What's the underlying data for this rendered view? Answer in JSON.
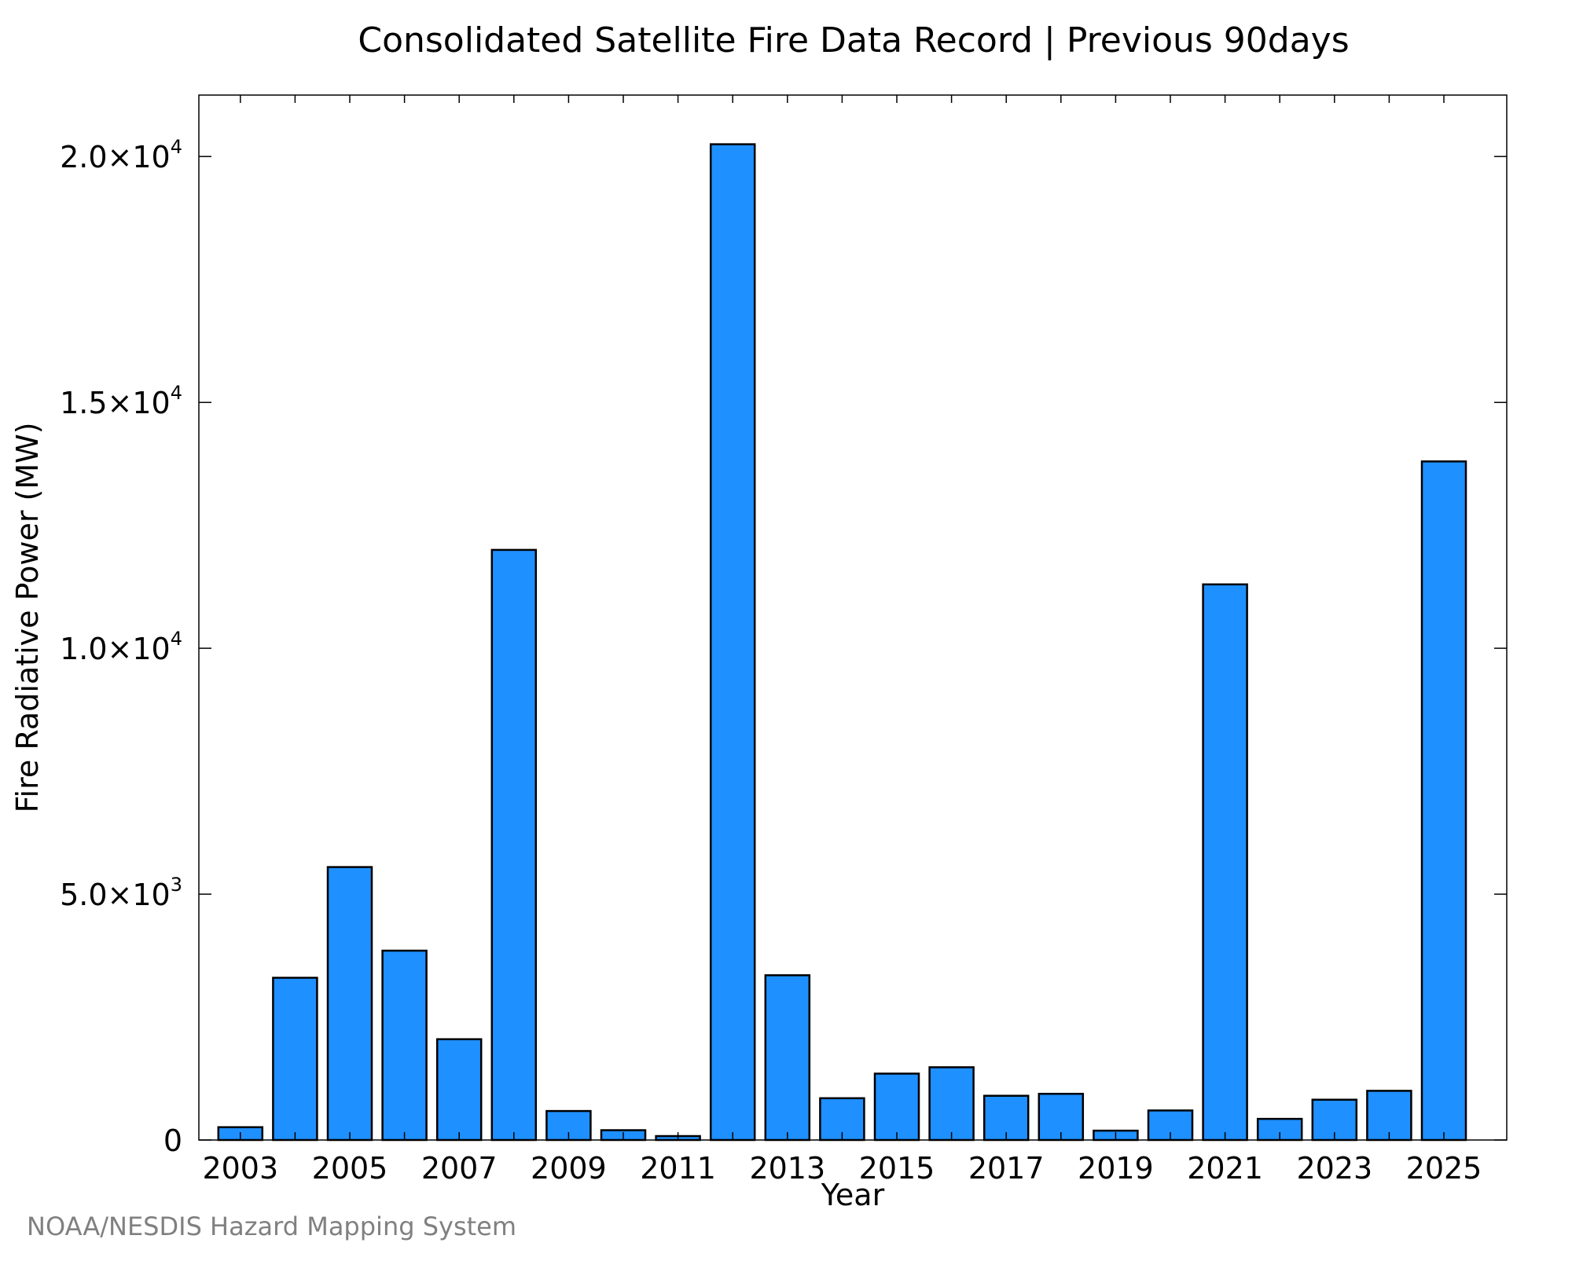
{
  "chart_data": {
    "type": "bar",
    "title": "Consolidated Satellite Fire Data Record | Previous 90days",
    "xlabel": "Year",
    "ylabel": "Fire Radiative Power (MW)",
    "categories": [
      "2003",
      "2004",
      "2005",
      "2006",
      "2007",
      "2008",
      "2009",
      "2010",
      "2011",
      "2012",
      "2013",
      "2014",
      "2015",
      "2016",
      "2017",
      "2018",
      "2019",
      "2020",
      "2021",
      "2022",
      "2023",
      "2024",
      "2025"
    ],
    "values": [
      260,
      3300,
      5550,
      3850,
      2050,
      12000,
      590,
      200,
      80,
      20250,
      3350,
      850,
      1350,
      1480,
      900,
      940,
      190,
      600,
      11300,
      430,
      820,
      1000,
      13800
    ],
    "ylim": [
      0,
      21250
    ],
    "y_ticks": [
      {
        "value": 0,
        "mantissa": "0",
        "exponent": ""
      },
      {
        "value": 5000,
        "mantissa": "5.0×10",
        "exponent": "3"
      },
      {
        "value": 10000,
        "mantissa": "1.0×10",
        "exponent": "4"
      },
      {
        "value": 15000,
        "mantissa": "1.5×10",
        "exponent": "4"
      },
      {
        "value": 20000,
        "mantissa": "2.0×10",
        "exponent": "4"
      }
    ],
    "x_tick_labels": [
      "2003",
      "2005",
      "2007",
      "2009",
      "2011",
      "2013",
      "2015",
      "2017",
      "2019",
      "2021",
      "2023",
      "2025"
    ],
    "grid": false,
    "legend": "none",
    "bar_color": "#1e90ff",
    "bar_edge_color": "#000000"
  },
  "footer": {
    "credit": "NOAA/NESDIS Hazard Mapping System"
  }
}
